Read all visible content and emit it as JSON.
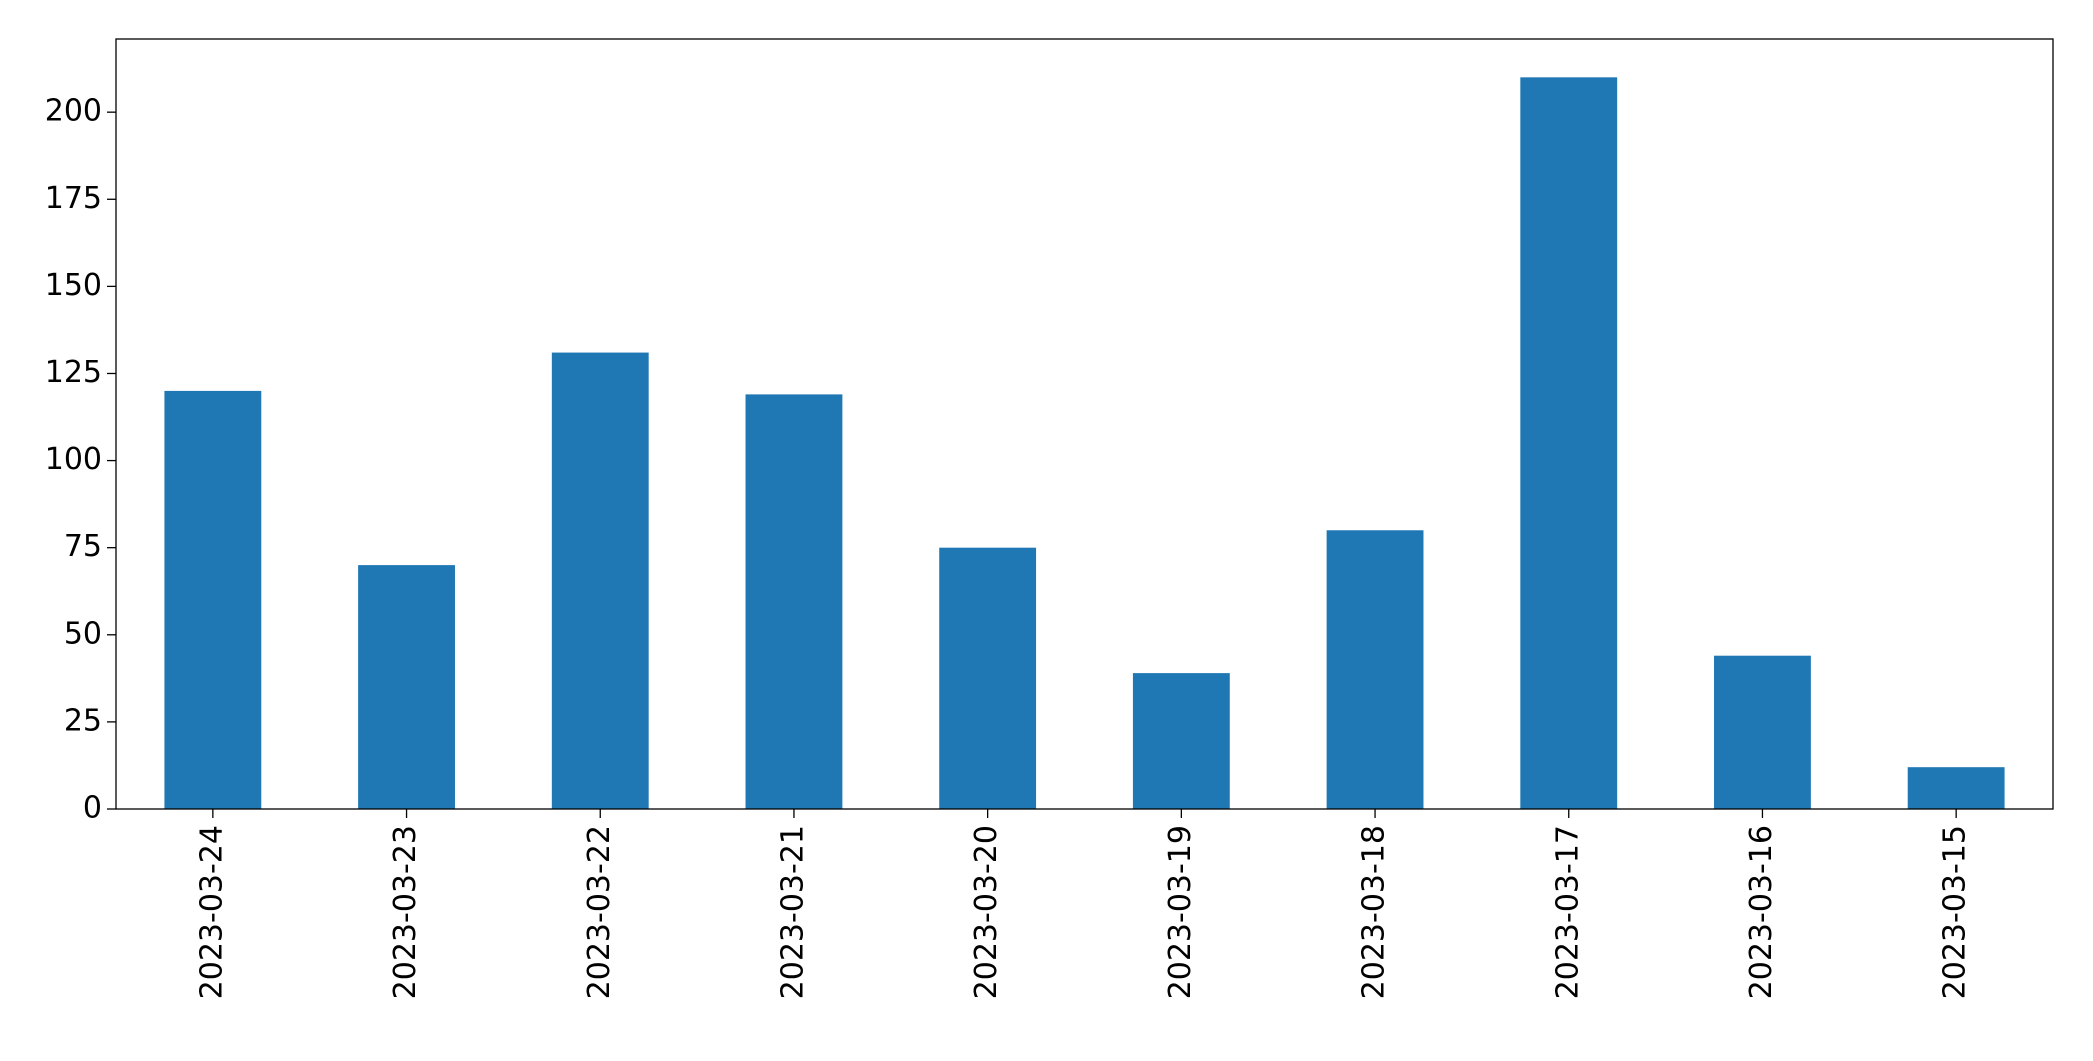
{
  "chart_data": {
    "type": "bar",
    "categories": [
      "2023-03-24",
      "2023-03-23",
      "2023-03-22",
      "2023-03-21",
      "2023-03-20",
      "2023-03-19",
      "2023-03-18",
      "2023-03-17",
      "2023-03-16",
      "2023-03-15"
    ],
    "values": [
      120,
      70,
      131,
      119,
      75,
      39,
      80,
      210,
      44,
      12
    ],
    "color": "#1f77b4",
    "ylim": [
      0,
      221
    ],
    "yticks": [
      0,
      25,
      50,
      75,
      100,
      125,
      150,
      175,
      200
    ],
    "grid": false
  }
}
